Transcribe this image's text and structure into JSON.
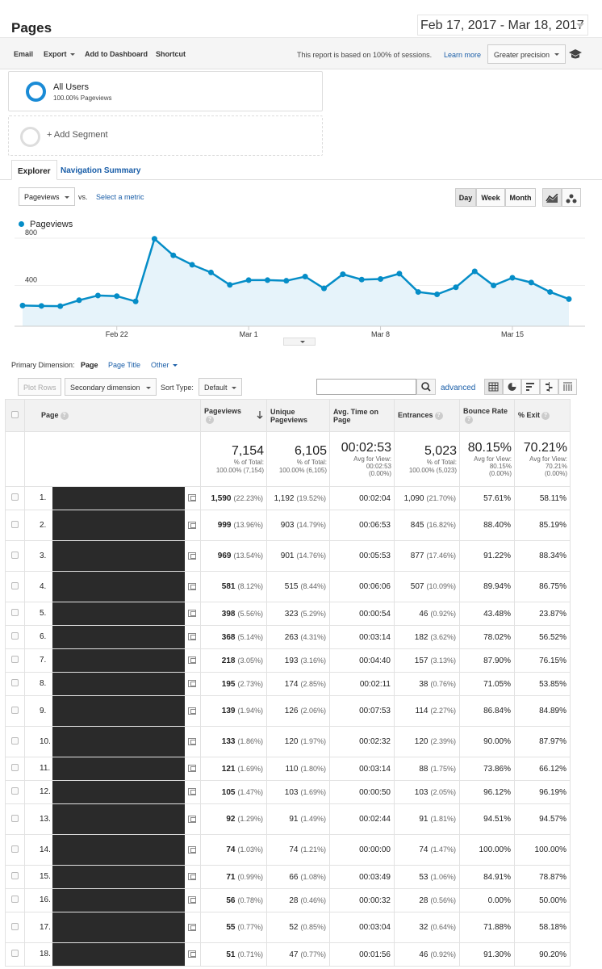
{
  "header": {
    "title": "Pages",
    "date_range": "Feb 17, 2017 - Mar 18, 2017"
  },
  "toolbar": {
    "email": "Email",
    "export": "Export",
    "add_to_dashboard": "Add to Dashboard",
    "shortcut": "Shortcut",
    "sessions_note": "This report is based on 100% of sessions.",
    "learn_more": "Learn more",
    "precision": "Greater precision"
  },
  "segments": {
    "all_users": "All Users",
    "all_users_sub": "100.00% Pageviews",
    "add_segment": "+ Add Segment"
  },
  "tabs": {
    "explorer": "Explorer",
    "navigation_summary": "Navigation Summary"
  },
  "chart_controls": {
    "metric": "Pageviews",
    "vs": "vs.",
    "select_metric": "Select a metric",
    "day": "Day",
    "week": "Week",
    "month": "Month"
  },
  "chart_data": {
    "type": "area",
    "series": [
      {
        "name": "Pageviews",
        "values": [
          175,
          172,
          170,
          220,
          260,
          255,
          210,
          740,
          600,
          520,
          455,
          350,
          390,
          390,
          385,
          420,
          320,
          440,
          395,
          400,
          445,
          290,
          270,
          330,
          465,
          345,
          410,
          370,
          290,
          230
        ]
      }
    ],
    "x_tick_labels": [
      "Feb 22",
      "Mar 1",
      "Mar 8",
      "Mar 15"
    ],
    "y_tick_labels": [
      "800",
      "400"
    ],
    "ylim": [
      0,
      950
    ],
    "color": "#058dc7",
    "legend": "top-left"
  },
  "primary_dimension": {
    "label": "Primary Dimension:",
    "page": "Page",
    "page_title": "Page Title",
    "other": "Other"
  },
  "filters": {
    "plot_rows": "Plot Rows",
    "secondary_dimension": "Secondary dimension",
    "sort_type_label": "Sort Type:",
    "sort_type": "Default",
    "advanced": "advanced"
  },
  "table": {
    "headers": {
      "page": "Page",
      "pageviews": "Pageviews",
      "unique_pageviews": "Unique Pageviews",
      "avg_time": "Avg. Time on Page",
      "entrances": "Entrances",
      "bounce_rate": "Bounce Rate",
      "exit": "% Exit"
    },
    "totals": {
      "pageviews": "7,154",
      "pageviews_sub1": "% of Total:",
      "pageviews_sub2": "100.00% (7,154)",
      "unique": "6,105",
      "unique_sub1": "% of Total:",
      "unique_sub2": "100.00% (6,105)",
      "avg_time": "00:02:53",
      "avg_time_sub1": "Avg for View:",
      "avg_time_sub2": "00:02:53",
      "avg_time_sub3": "(0.00%)",
      "entrances": "5,023",
      "entrances_sub1": "% of Total:",
      "entrances_sub2": "100.00% (5,023)",
      "bounce": "80.15%",
      "bounce_sub1": "Avg for View:",
      "bounce_sub2": "80.15%",
      "bounce_sub3": "(0.00%)",
      "exit": "70.21%",
      "exit_sub1": "Avg for View:",
      "exit_sub2": "70.21%",
      "exit_sub3": "(0.00%)"
    },
    "rows": [
      {
        "idx": "1.",
        "pv": "1,590",
        "pv_pct": "(22.23%)",
        "upv": "1,192",
        "upv_pct": "(19.52%)",
        "time": "00:02:04",
        "ent": "1,090",
        "ent_pct": "(21.70%)",
        "bounce": "57.61%",
        "exit": "58.11%"
      },
      {
        "idx": "2.",
        "pv": "999",
        "pv_pct": "(13.96%)",
        "upv": "903",
        "upv_pct": "(14.79%)",
        "time": "00:06:53",
        "ent": "845",
        "ent_pct": "(16.82%)",
        "bounce": "88.40%",
        "exit": "85.19%"
      },
      {
        "idx": "3.",
        "pv": "969",
        "pv_pct": "(13.54%)",
        "upv": "901",
        "upv_pct": "(14.76%)",
        "time": "00:05:53",
        "ent": "877",
        "ent_pct": "(17.46%)",
        "bounce": "91.22%",
        "exit": "88.34%"
      },
      {
        "idx": "4.",
        "pv": "581",
        "pv_pct": "(8.12%)",
        "upv": "515",
        "upv_pct": "(8.44%)",
        "time": "00:06:06",
        "ent": "507",
        "ent_pct": "(10.09%)",
        "bounce": "89.94%",
        "exit": "86.75%"
      },
      {
        "idx": "5.",
        "pv": "398",
        "pv_pct": "(5.56%)",
        "upv": "323",
        "upv_pct": "(5.29%)",
        "time": "00:00:54",
        "ent": "46",
        "ent_pct": "(0.92%)",
        "bounce": "43.48%",
        "exit": "23.87%"
      },
      {
        "idx": "6.",
        "pv": "368",
        "pv_pct": "(5.14%)",
        "upv": "263",
        "upv_pct": "(4.31%)",
        "time": "00:03:14",
        "ent": "182",
        "ent_pct": "(3.62%)",
        "bounce": "78.02%",
        "exit": "56.52%"
      },
      {
        "idx": "7.",
        "pv": "218",
        "pv_pct": "(3.05%)",
        "upv": "193",
        "upv_pct": "(3.16%)",
        "time": "00:04:40",
        "ent": "157",
        "ent_pct": "(3.13%)",
        "bounce": "87.90%",
        "exit": "76.15%"
      },
      {
        "idx": "8.",
        "pv": "195",
        "pv_pct": "(2.73%)",
        "upv": "174",
        "upv_pct": "(2.85%)",
        "time": "00:02:11",
        "ent": "38",
        "ent_pct": "(0.76%)",
        "bounce": "71.05%",
        "exit": "53.85%"
      },
      {
        "idx": "9.",
        "pv": "139",
        "pv_pct": "(1.94%)",
        "upv": "126",
        "upv_pct": "(2.06%)",
        "time": "00:07:53",
        "ent": "114",
        "ent_pct": "(2.27%)",
        "bounce": "86.84%",
        "exit": "84.89%"
      },
      {
        "idx": "10.",
        "pv": "133",
        "pv_pct": "(1.86%)",
        "upv": "120",
        "upv_pct": "(1.97%)",
        "time": "00:02:32",
        "ent": "120",
        "ent_pct": "(2.39%)",
        "bounce": "90.00%",
        "exit": "87.97%"
      },
      {
        "idx": "11.",
        "pv": "121",
        "pv_pct": "(1.69%)",
        "upv": "110",
        "upv_pct": "(1.80%)",
        "time": "00:03:14",
        "ent": "88",
        "ent_pct": "(1.75%)",
        "bounce": "73.86%",
        "exit": "66.12%"
      },
      {
        "idx": "12.",
        "pv": "105",
        "pv_pct": "(1.47%)",
        "upv": "103",
        "upv_pct": "(1.69%)",
        "time": "00:00:50",
        "ent": "103",
        "ent_pct": "(2.05%)",
        "bounce": "96.12%",
        "exit": "96.19%"
      },
      {
        "idx": "13.",
        "pv": "92",
        "pv_pct": "(1.29%)",
        "upv": "91",
        "upv_pct": "(1.49%)",
        "time": "00:02:44",
        "ent": "91",
        "ent_pct": "(1.81%)",
        "bounce": "94.51%",
        "exit": "94.57%"
      },
      {
        "idx": "14.",
        "pv": "74",
        "pv_pct": "(1.03%)",
        "upv": "74",
        "upv_pct": "(1.21%)",
        "time": "00:00:00",
        "ent": "74",
        "ent_pct": "(1.47%)",
        "bounce": "100.00%",
        "exit": "100.00%"
      },
      {
        "idx": "15.",
        "pv": "71",
        "pv_pct": "(0.99%)",
        "upv": "66",
        "upv_pct": "(1.08%)",
        "time": "00:03:49",
        "ent": "53",
        "ent_pct": "(1.06%)",
        "bounce": "84.91%",
        "exit": "78.87%"
      },
      {
        "idx": "16.",
        "pv": "56",
        "pv_pct": "(0.78%)",
        "upv": "28",
        "upv_pct": "(0.46%)",
        "time": "00:00:32",
        "ent": "28",
        "ent_pct": "(0.56%)",
        "bounce": "0.00%",
        "exit": "50.00%"
      },
      {
        "idx": "17.",
        "pv": "55",
        "pv_pct": "(0.77%)",
        "upv": "52",
        "upv_pct": "(0.85%)",
        "time": "00:03:04",
        "ent": "32",
        "ent_pct": "(0.64%)",
        "bounce": "71.88%",
        "exit": "58.18%"
      },
      {
        "idx": "18.",
        "pv": "51",
        "pv_pct": "(0.71%)",
        "upv": "47",
        "upv_pct": "(0.77%)",
        "time": "00:01:56",
        "ent": "46",
        "ent_pct": "(0.92%)",
        "bounce": "91.30%",
        "exit": "90.20%"
      }
    ]
  }
}
